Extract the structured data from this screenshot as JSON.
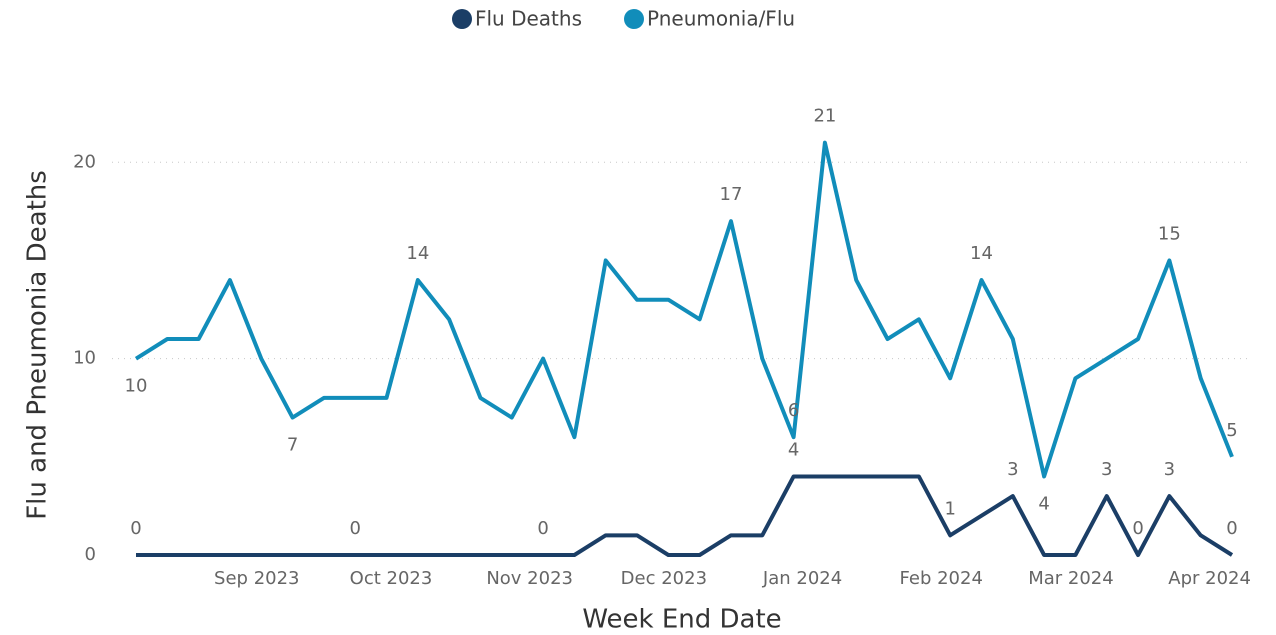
{
  "chart_data": {
    "type": "line",
    "x_label": "Week End Date",
    "y_label": "Flu and Pneumonia Deaths",
    "x": [
      "2023-08-05",
      "2023-08-12",
      "2023-08-19",
      "2023-08-26",
      "2023-09-02",
      "2023-09-09",
      "2023-09-16",
      "2023-09-23",
      "2023-09-30",
      "2023-10-07",
      "2023-10-14",
      "2023-10-21",
      "2023-10-28",
      "2023-11-04",
      "2023-11-11",
      "2023-11-18",
      "2023-11-25",
      "2023-12-02",
      "2023-12-09",
      "2023-12-16",
      "2023-12-23",
      "2023-12-30",
      "2024-01-06",
      "2024-01-13",
      "2024-01-20",
      "2024-01-27",
      "2024-02-03",
      "2024-02-10",
      "2024-02-17",
      "2024-02-24",
      "2024-03-02",
      "2024-03-09",
      "2024-03-16",
      "2024-03-23",
      "2024-03-30",
      "2024-04-06"
    ],
    "series": [
      {
        "name": "Flu Deaths",
        "color": "#1b3e66",
        "values": [
          0,
          0,
          0,
          0,
          0,
          0,
          0,
          0,
          0,
          0,
          0,
          0,
          0,
          0,
          0,
          1,
          1,
          0,
          0,
          1,
          1,
          4,
          4,
          4,
          4,
          4,
          1,
          2,
          3,
          0,
          0,
          3,
          0,
          3,
          1,
          0
        ],
        "value_labels": [
          "0",
          null,
          null,
          null,
          null,
          null,
          null,
          "0",
          null,
          null,
          null,
          null,
          null,
          "0",
          null,
          null,
          null,
          null,
          null,
          null,
          null,
          "4",
          null,
          null,
          null,
          null,
          "1",
          null,
          "3",
          null,
          null,
          "3",
          "0",
          "3",
          null,
          "0"
        ]
      },
      {
        "name": "Pneumonia/Flu",
        "color": "#118dba",
        "values": [
          10,
          11,
          11,
          14,
          10,
          7,
          8,
          8,
          8,
          14,
          12,
          8,
          7,
          10,
          6,
          15,
          13,
          13,
          12,
          17,
          10,
          6,
          21,
          14,
          11,
          12,
          9,
          14,
          11,
          4,
          9,
          10,
          11,
          15,
          9,
          5
        ],
        "value_labels": [
          "10",
          null,
          null,
          null,
          null,
          "7",
          null,
          null,
          null,
          "14",
          null,
          null,
          null,
          null,
          null,
          null,
          null,
          null,
          null,
          "17",
          null,
          "6",
          "21",
          null,
          null,
          null,
          null,
          "14",
          null,
          "4",
          null,
          null,
          null,
          "15",
          null,
          "5"
        ]
      }
    ],
    "xlim": [
      "2023-08-05",
      "2024-04-06"
    ],
    "xticks": [
      {
        "value": "2023-09-01",
        "label": "Sep 2023"
      },
      {
        "value": "2023-10-01",
        "label": "Oct 2023"
      },
      {
        "value": "2023-11-01",
        "label": "Nov 2023"
      },
      {
        "value": "2023-12-01",
        "label": "Dec 2023"
      },
      {
        "value": "2024-01-01",
        "label": "Jan 2024"
      },
      {
        "value": "2024-02-01",
        "label": "Feb 2024"
      },
      {
        "value": "2024-03-01",
        "label": "Mar 2024"
      },
      {
        "value": "2024-04-01",
        "label": "Apr 2024"
      }
    ],
    "ylim": [
      0,
      22
    ],
    "yticks": [
      0,
      10,
      20
    ],
    "grid": true,
    "legend": "top"
  }
}
